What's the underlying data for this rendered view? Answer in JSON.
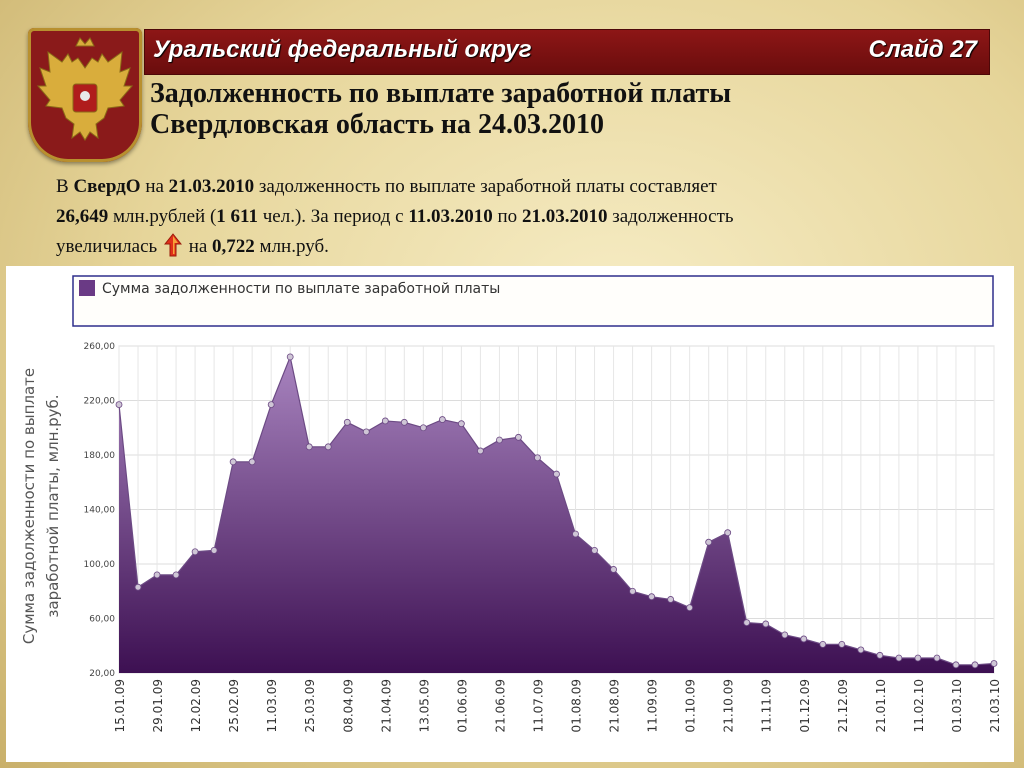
{
  "header": {
    "region": "Уральский федеральный округ",
    "slide": "Слайд 27"
  },
  "title": {
    "line1": "Задолженность по выплате заработной платы",
    "line2": "Свердловская область на 24.03.2010"
  },
  "description": {
    "p1": "В ",
    "p2": "СвердО",
    "p3": " на ",
    "p4": "21.03.2010",
    "p5": " задолженность по выплате заработной платы составляет",
    "p6": "26,649",
    "p7": " млн.рублей (",
    "p8": "1 611",
    "p9": " чел.). За период с ",
    "p10": "11.03.2010",
    "p11": " по ",
    "p12": "21.03.2010",
    "p13": " задолженность",
    "p14": "увеличилась",
    "p15": " на ",
    "p16": "0,722",
    "p17": " млн.руб."
  },
  "icons": {
    "increase": "red-up-arrow-icon"
  },
  "colors": {
    "fill_top": "#a884bf",
    "fill_bottom": "#3d1052",
    "line": "#6c4a84",
    "marker": "#cfc6d6",
    "legend_border": "#2f2f8c",
    "legend_swatch": "#6a3a85",
    "header": "#7a1010"
  },
  "chart_data": {
    "type": "area",
    "legend": "Сумма задолженности по выплате заработной платы",
    "ylabel_line1": "Сумма задолженности по выплате",
    "ylabel_line2": "заработной платы, млн.руб.",
    "ylim": [
      20,
      260
    ],
    "yticks": [
      20,
      60,
      100,
      140,
      180,
      220,
      260
    ],
    "ytick_labels": [
      "20,00",
      "60,00",
      "100,00",
      "140,00",
      "180,00",
      "220,00",
      "260,00"
    ],
    "xtick_labels": [
      "15.01.09",
      "29.01.09",
      "12.02.09",
      "25.02.09",
      "11.03.09",
      "25.03.09",
      "08.04.09",
      "21.04.09",
      "13.05.09",
      "01.06.09",
      "21.06.09",
      "11.07.09",
      "01.08.09",
      "21.08.09",
      "11.09.09",
      "01.10.09",
      "21.10.09",
      "11.11.09",
      "01.12.09",
      "21.12.09",
      "21.01.10",
      "11.02.10",
      "01.03.10",
      "21.03.10"
    ],
    "grid": true,
    "values": [
      217,
      83,
      92,
      92,
      109,
      110,
      175,
      175,
      217,
      252,
      186,
      186,
      204,
      197,
      205,
      204,
      200,
      206,
      203,
      183,
      191,
      193,
      178,
      166,
      122,
      110,
      96,
      80,
      76,
      74,
      68,
      116,
      123,
      57,
      56,
      48,
      45,
      41,
      41,
      37,
      33,
      31,
      31,
      31,
      26,
      26,
      27
    ]
  }
}
